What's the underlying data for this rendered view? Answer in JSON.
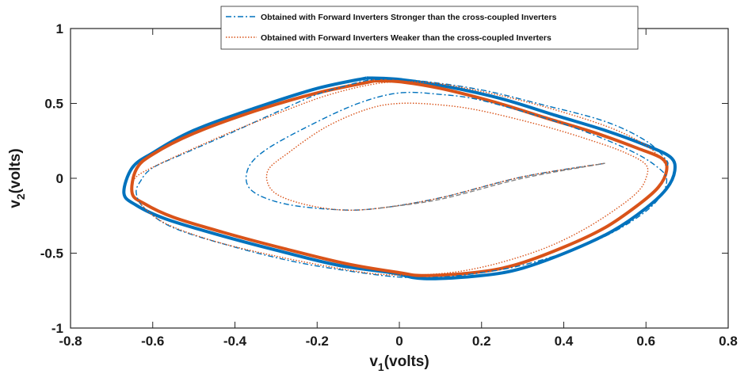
{
  "chart_data": {
    "type": "line",
    "title": "",
    "xlabel": {
      "main": "v",
      "sub": "1",
      "rest": "(volts)"
    },
    "ylabel": {
      "main": "v",
      "sub": "2",
      "rest": "(volts)"
    },
    "xlim": [
      -0.8,
      0.8
    ],
    "ylim": [
      -1,
      1
    ],
    "xticks": [
      -0.8,
      -0.6,
      -0.4,
      -0.2,
      0,
      0.2,
      0.4,
      0.6,
      0.8
    ],
    "xtick_labels": [
      "-0.8",
      "-0.6",
      "-0.4",
      "-0.2",
      "0",
      "0.2",
      "0.4",
      "0.6",
      "0.8"
    ],
    "yticks": [
      -1,
      -0.5,
      0,
      0.5,
      1
    ],
    "ytick_labels": [
      "-1",
      "-0.5",
      "0",
      "0.5",
      "1"
    ],
    "grid": false,
    "legend_position": "top-right",
    "colors": {
      "blue": "#0072BD",
      "orange": "#D95319",
      "axis": "#262626"
    },
    "series": [
      {
        "name": "Obtained with Forward Inverters Stronger than the cross-coupled Inverters",
        "color": "#0072BD",
        "style": "dashdot",
        "in_legend": true,
        "points": [
          [
            0.5,
            0.1
          ],
          [
            0.3,
            0.01
          ],
          [
            0.1,
            -0.13
          ],
          [
            -0.05,
            -0.2
          ],
          [
            -0.15,
            -0.21
          ],
          [
            -0.28,
            -0.17
          ],
          [
            -0.36,
            -0.08
          ],
          [
            -0.37,
            0.05
          ],
          [
            -0.33,
            0.18
          ],
          [
            -0.22,
            0.35
          ],
          [
            -0.1,
            0.5
          ],
          [
            0.0,
            0.57
          ],
          [
            0.1,
            0.56
          ],
          [
            0.2,
            0.52
          ],
          [
            0.38,
            0.38
          ],
          [
            0.5,
            0.26
          ],
          [
            0.58,
            0.16
          ],
          [
            0.63,
            0.07
          ],
          [
            0.65,
            0.0
          ],
          [
            0.64,
            -0.1
          ],
          [
            0.6,
            -0.22
          ],
          [
            0.52,
            -0.36
          ],
          [
            0.42,
            -0.48
          ],
          [
            0.3,
            -0.58
          ],
          [
            0.2,
            -0.63
          ],
          [
            0.1,
            -0.66
          ],
          [
            0.0,
            -0.66
          ],
          [
            -0.12,
            -0.62
          ],
          [
            -0.25,
            -0.56
          ],
          [
            -0.4,
            -0.46
          ],
          [
            -0.55,
            -0.33
          ],
          [
            -0.62,
            -0.2
          ],
          [
            -0.64,
            -0.1
          ],
          [
            -0.63,
            -0.02
          ],
          [
            -0.6,
            0.07
          ],
          [
            -0.52,
            0.17
          ],
          [
            -0.42,
            0.29
          ],
          [
            -0.3,
            0.44
          ],
          [
            -0.2,
            0.56
          ],
          [
            -0.1,
            0.64
          ],
          [
            -0.05,
            0.66
          ],
          [
            0.05,
            0.65
          ],
          [
            0.2,
            0.59
          ],
          [
            0.35,
            0.49
          ],
          [
            0.5,
            0.38
          ],
          [
            0.6,
            0.25
          ],
          [
            0.65,
            0.12
          ],
          [
            0.65,
            0.08
          ]
        ]
      },
      {
        "name": "Obtained with Forward Inverters Weaker than the cross-coupled Inverters",
        "color": "#D95319",
        "style": "dotted",
        "in_legend": true,
        "points": [
          [
            0.5,
            0.1
          ],
          [
            0.3,
            0.01
          ],
          [
            0.1,
            -0.13
          ],
          [
            -0.05,
            -0.2
          ],
          [
            -0.15,
            -0.21
          ],
          [
            -0.25,
            -0.16
          ],
          [
            -0.31,
            -0.08
          ],
          [
            -0.32,
            0.05
          ],
          [
            -0.27,
            0.17
          ],
          [
            -0.18,
            0.34
          ],
          [
            -0.08,
            0.46
          ],
          [
            0.0,
            0.5
          ],
          [
            0.1,
            0.49
          ],
          [
            0.2,
            0.45
          ],
          [
            0.35,
            0.35
          ],
          [
            0.47,
            0.25
          ],
          [
            0.55,
            0.17
          ],
          [
            0.6,
            0.09
          ],
          [
            0.6,
            0.0
          ],
          [
            0.58,
            -0.09
          ],
          [
            0.53,
            -0.2
          ],
          [
            0.45,
            -0.34
          ],
          [
            0.36,
            -0.46
          ],
          [
            0.25,
            -0.56
          ],
          [
            0.15,
            -0.62
          ],
          [
            0.05,
            -0.645
          ],
          [
            -0.05,
            -0.64
          ],
          [
            -0.15,
            -0.6
          ],
          [
            -0.3,
            -0.52
          ],
          [
            -0.45,
            -0.42
          ],
          [
            -0.57,
            -0.3
          ],
          [
            -0.63,
            -0.17
          ],
          [
            -0.65,
            -0.08
          ],
          [
            -0.64,
            0.01
          ],
          [
            -0.58,
            0.1
          ],
          [
            -0.5,
            0.2
          ],
          [
            -0.4,
            0.32
          ],
          [
            -0.28,
            0.45
          ],
          [
            -0.18,
            0.55
          ],
          [
            -0.08,
            0.62
          ],
          [
            0.0,
            0.645
          ],
          [
            0.1,
            0.63
          ],
          [
            0.25,
            0.55
          ],
          [
            0.4,
            0.44
          ],
          [
            0.52,
            0.33
          ],
          [
            0.6,
            0.22
          ],
          [
            0.64,
            0.12
          ],
          [
            0.65,
            0.07
          ]
        ]
      },
      {
        "name": "",
        "color": "#0072BD",
        "style": "solid",
        "width": 4,
        "in_legend": false,
        "points": [
          [
            -0.08,
            0.67
          ],
          [
            -0.2,
            0.6
          ],
          [
            -0.35,
            0.47
          ],
          [
            -0.5,
            0.32
          ],
          [
            -0.6,
            0.17
          ],
          [
            -0.65,
            0.07
          ],
          [
            -0.67,
            -0.1
          ],
          [
            -0.64,
            -0.18
          ],
          [
            -0.57,
            -0.27
          ],
          [
            -0.45,
            -0.37
          ],
          [
            -0.3,
            -0.48
          ],
          [
            -0.15,
            -0.58
          ],
          [
            -0.02,
            -0.63
          ],
          [
            0.06,
            -0.67
          ],
          [
            0.2,
            -0.65
          ],
          [
            0.3,
            -0.6
          ],
          [
            0.42,
            -0.48
          ],
          [
            0.52,
            -0.35
          ],
          [
            0.6,
            -0.2
          ],
          [
            0.65,
            -0.07
          ],
          [
            0.67,
            0.05
          ],
          [
            0.66,
            0.14
          ],
          [
            0.6,
            0.22
          ],
          [
            0.5,
            0.32
          ],
          [
            0.38,
            0.42
          ],
          [
            0.25,
            0.53
          ],
          [
            0.12,
            0.61
          ],
          [
            0.0,
            0.66
          ],
          [
            -0.08,
            0.67
          ]
        ]
      },
      {
        "name": "",
        "color": "#D95319",
        "style": "solid",
        "width": 4,
        "in_legend": false,
        "points": [
          [
            -0.06,
            0.65
          ],
          [
            -0.2,
            0.57
          ],
          [
            -0.35,
            0.45
          ],
          [
            -0.5,
            0.3
          ],
          [
            -0.6,
            0.16
          ],
          [
            -0.64,
            0.06
          ],
          [
            -0.65,
            -0.1
          ],
          [
            -0.62,
            -0.17
          ],
          [
            -0.55,
            -0.26
          ],
          [
            -0.43,
            -0.36
          ],
          [
            -0.28,
            -0.47
          ],
          [
            -0.13,
            -0.57
          ],
          [
            0.0,
            -0.63
          ],
          [
            0.06,
            -0.65
          ],
          [
            0.18,
            -0.63
          ],
          [
            0.28,
            -0.58
          ],
          [
            0.4,
            -0.46
          ],
          [
            0.5,
            -0.33
          ],
          [
            0.58,
            -0.18
          ],
          [
            0.63,
            -0.06
          ],
          [
            0.65,
            0.05
          ],
          [
            0.64,
            0.13
          ],
          [
            0.58,
            0.2
          ],
          [
            0.48,
            0.3
          ],
          [
            0.36,
            0.4
          ],
          [
            0.23,
            0.51
          ],
          [
            0.1,
            0.6
          ],
          [
            0.0,
            0.645
          ],
          [
            -0.06,
            0.65
          ]
        ]
      },
      {
        "name": "",
        "color": "#7f7f7f",
        "style": "dashed",
        "width": 1.3,
        "in_legend": false,
        "points": [
          [
            -0.05,
            -0.2
          ],
          [
            0.1,
            -0.14
          ],
          [
            0.3,
            0.0
          ],
          [
            0.5,
            0.1
          ]
        ]
      }
    ]
  }
}
